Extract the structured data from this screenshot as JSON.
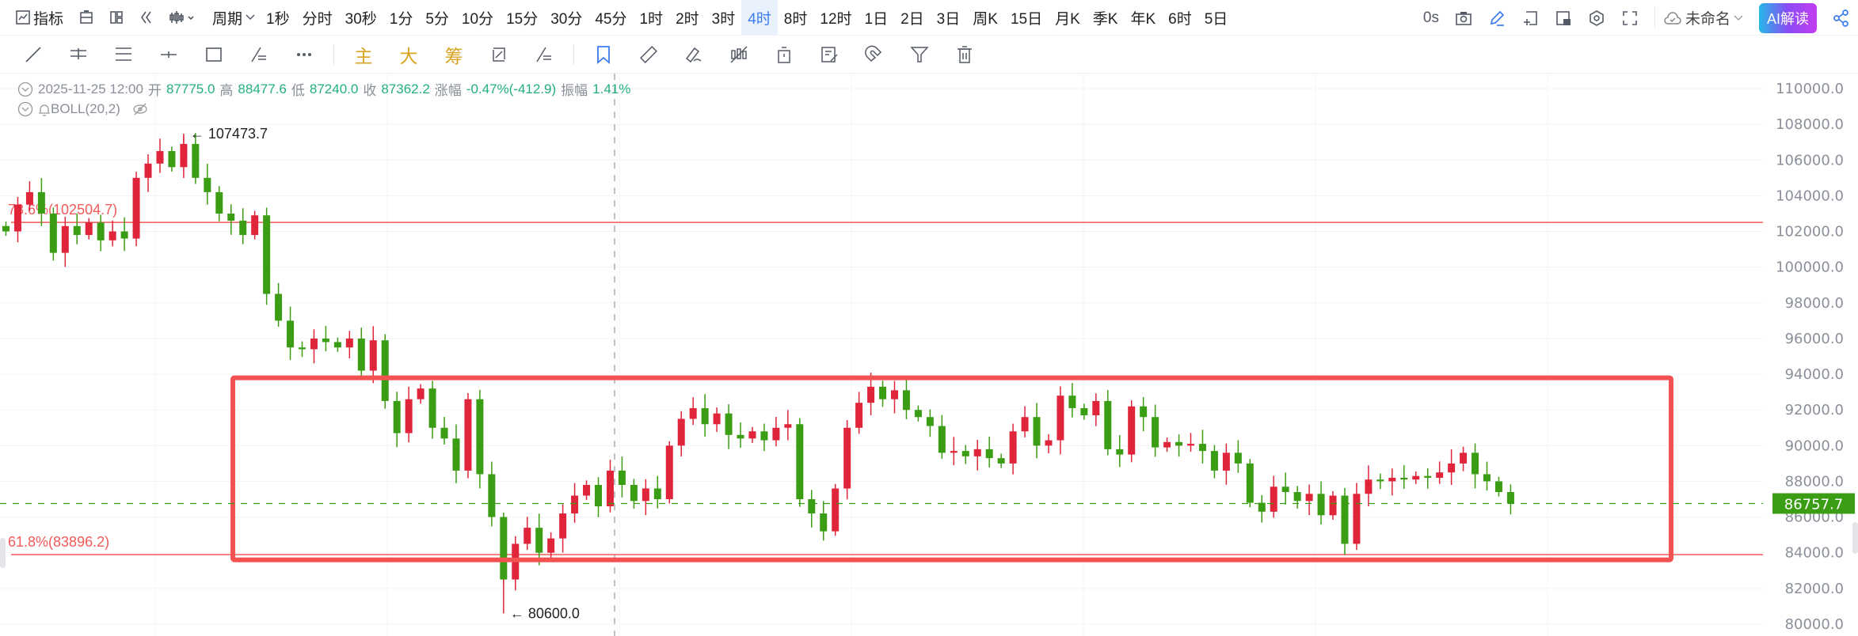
{
  "toolbar": {
    "indicator_label": "指标",
    "period_label": "周期",
    "periods": [
      "1秒",
      "分时",
      "30秒",
      "1分",
      "5分",
      "10分",
      "15分",
      "30分",
      "45分",
      "1时",
      "2时",
      "3时",
      "4时",
      "8时",
      "12时",
      "1日",
      "2日",
      "3日",
      "周K",
      "15日",
      "月K",
      "季K",
      "年K",
      "6时",
      "5日"
    ],
    "active_period": "4时",
    "timer": "0s",
    "layout_name": "未命名",
    "ai_button": "AI解读"
  },
  "drawing_tools": {
    "main": "主",
    "big": "大",
    "chips": "筹"
  },
  "info": {
    "datetime": "2025-11-25 12:00",
    "open_label": "开",
    "open": "87775.0",
    "high_label": "高",
    "high": "88477.6",
    "low_label": "低",
    "low": "87240.0",
    "close_label": "收",
    "close": "87362.2",
    "change_label": "涨幅",
    "change": "-0.47%(-412.9)",
    "amplitude_label": "振幅",
    "amplitude": "1.41%"
  },
  "indicator": {
    "name": "BOLL(20,2)"
  },
  "colors": {
    "up": "#e0243a",
    "down": "#3a9d14",
    "fib": "#f25a5a",
    "box": "#f45252",
    "accent": "#3c7cf0",
    "last_price": "#3a9d14"
  },
  "chart_data": {
    "type": "candlestick",
    "ylim": [
      80000,
      110000
    ],
    "yticks": [
      "110000.0",
      "108000.0",
      "106000.0",
      "104000.0",
      "102000.0",
      "100000.0",
      "98000.0",
      "96000.0",
      "94000.0",
      "92000.0",
      "90000.0",
      "88000.0",
      "86000.0",
      "84000.0",
      "82000.0",
      "80000.0"
    ],
    "grid": true,
    "closes": [
      102000,
      103500,
      104200,
      103000,
      100800,
      102300,
      101800,
      102500,
      101500,
      102000,
      101600,
      105000,
      105800,
      106500,
      105600,
      106900,
      105000,
      104200,
      103000,
      102600,
      101800,
      102900,
      98500,
      97000,
      95500,
      95400,
      96000,
      95800,
      95500,
      96000,
      94200,
      95900,
      92500,
      90700,
      92600,
      93200,
      91000,
      90400,
      88600,
      92600,
      88400,
      86000,
      82500,
      84500,
      85400,
      84000,
      84800,
      86200,
      87200,
      87800,
      86600,
      88600,
      87800,
      86900,
      87600,
      87000,
      90000,
      91500,
      92100,
      91200,
      91800,
      90600,
      90400,
      90800,
      90300,
      91000,
      91200,
      87000,
      86200,
      85200,
      87600,
      91000,
      92400,
      93300,
      92600,
      93100,
      92000,
      91600,
      91100,
      89600,
      89700,
      89400,
      89800,
      89300,
      89000,
      90800,
      91600,
      90000,
      90300,
      92800,
      92100,
      91700,
      92500,
      89800,
      89500,
      92200,
      91600,
      89900,
      90200,
      90000,
      90100,
      89700,
      88600,
      89600,
      89000,
      86800,
      86300,
      87700,
      87400,
      86900,
      87300,
      86100,
      87200,
      84500,
      87300,
      88100,
      88000,
      88200,
      88100,
      88300,
      88200,
      88500,
      89000,
      89600,
      88400,
      88000,
      87400,
      86757.7
    ],
    "max_marker": {
      "value": 107473.7,
      "label": "107473.7"
    },
    "min_marker": {
      "value": 80600.0,
      "label": "80600.0"
    },
    "last_price": {
      "value": 86757.7,
      "label": "86757.7"
    },
    "fib_levels": [
      {
        "value": 102504.7,
        "label": "78.6%(102504.7)"
      },
      {
        "value": 83896.2,
        "label": "61.8%(83896.2)"
      }
    ],
    "range_box": {
      "top": 93800,
      "bottom": 83600
    }
  }
}
